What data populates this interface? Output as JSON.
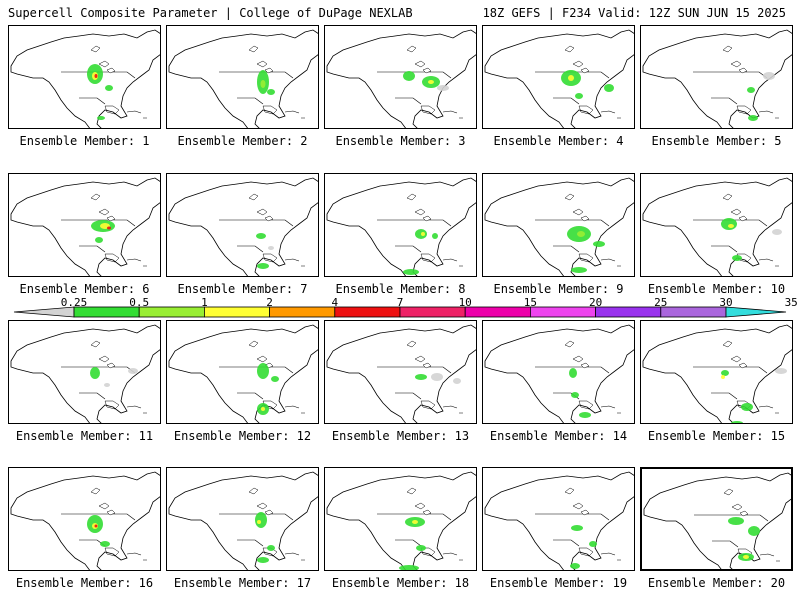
{
  "header": {
    "title": "Supercell Composite Parameter | College of DuPage NEXLAB",
    "run_info": "18Z GEFS | F234 Valid: 12Z SUN JUN 15 2025"
  },
  "panels": [
    {
      "label": "Ensemble Member: 1"
    },
    {
      "label": "Ensemble Member: 2"
    },
    {
      "label": "Ensemble Member: 3"
    },
    {
      "label": "Ensemble Member: 4"
    },
    {
      "label": "Ensemble Member: 5"
    },
    {
      "label": "Ensemble Member: 6"
    },
    {
      "label": "Ensemble Member: 7"
    },
    {
      "label": "Ensemble Member: 8"
    },
    {
      "label": "Ensemble Member: 9"
    },
    {
      "label": "Ensemble Member: 10"
    },
    {
      "label": "Ensemble Member: 11"
    },
    {
      "label": "Ensemble Member: 12"
    },
    {
      "label": "Ensemble Member: 13"
    },
    {
      "label": "Ensemble Member: 14"
    },
    {
      "label": "Ensemble Member: 15"
    },
    {
      "label": "Ensemble Member: 16"
    },
    {
      "label": "Ensemble Member: 17"
    },
    {
      "label": "Ensemble Member: 18"
    },
    {
      "label": "Ensemble Member: 19"
    },
    {
      "label": "Ensemble Member: 20"
    }
  ],
  "colorbar": {
    "labels": [
      "0.25",
      "0.5",
      "1",
      "2",
      "4",
      "7",
      "10",
      "15",
      "20",
      "25",
      "30",
      "35"
    ],
    "colors": [
      "#d3d3d3",
      "#33dd33",
      "#99ee33",
      "#ffff33",
      "#ff9900",
      "#ee1111",
      "#ee2266",
      "#ee00aa",
      "#ee44ee",
      "#9933ee",
      "#aa66dd",
      "#33dddd"
    ]
  }
}
